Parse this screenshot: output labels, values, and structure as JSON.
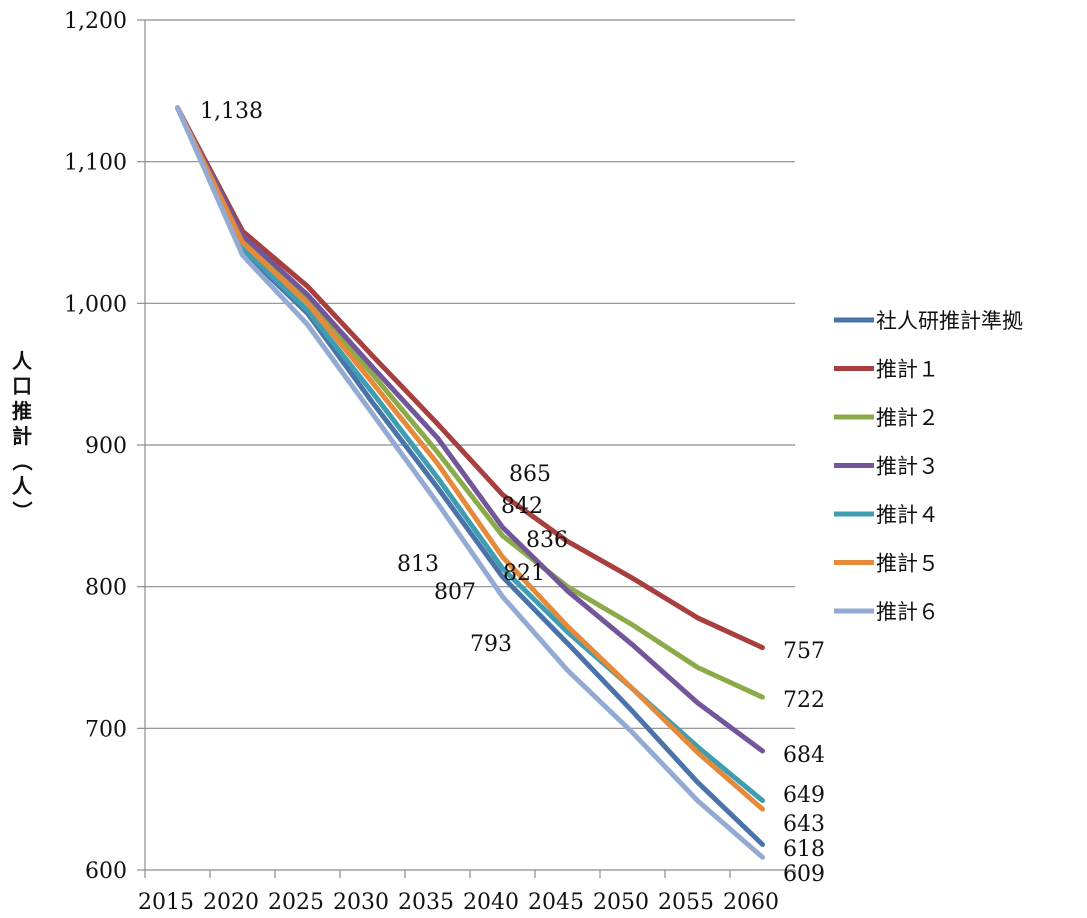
{
  "chart_data": {
    "type": "line",
    "title": "",
    "xlabel": "",
    "ylabel": "人口推計（人）",
    "categories": [
      "2015",
      "2020",
      "2025",
      "2030",
      "2035",
      "2040",
      "2045",
      "2050",
      "2055",
      "2060"
    ],
    "ylim": [
      600,
      1200
    ],
    "yticks": [
      600,
      700,
      800,
      900,
      1000,
      1100,
      1200
    ],
    "ytick_labels": [
      "600",
      "700",
      "800",
      "900",
      "1,000",
      "1,100",
      "1,200"
    ],
    "grid": true,
    "legend_position": "right",
    "series": [
      {
        "name": "社人研推計準拠",
        "color": "#4a73aa",
        "values": [
          1138,
          1037,
          993,
          930,
          870,
          807,
          760,
          712,
          662,
          618
        ]
      },
      {
        "name": "推計１",
        "color": "#a63f3d",
        "values": [
          1138,
          1051,
          1012,
          963,
          915,
          865,
          832,
          806,
          778,
          757
        ]
      },
      {
        "name": "推計２",
        "color": "#8bab4a",
        "values": [
          1138,
          1045,
          1003,
          950,
          895,
          836,
          800,
          773,
          743,
          722
        ]
      },
      {
        "name": "推計３",
        "color": "#73559a",
        "values": [
          1138,
          1048,
          1006,
          955,
          905,
          842,
          797,
          759,
          718,
          684
        ]
      },
      {
        "name": "推計４",
        "color": "#3e9db0",
        "values": [
          1138,
          1039,
          995,
          937,
          877,
          813,
          768,
          728,
          687,
          649
        ]
      },
      {
        "name": "推計５",
        "color": "#e58a3a",
        "values": [
          1138,
          1043,
          1000,
          944,
          887,
          821,
          772,
          728,
          683,
          643
        ]
      },
      {
        "name": "推計６",
        "color": "#93aad3",
        "values": [
          1138,
          1034,
          985,
          922,
          859,
          793,
          741,
          697,
          649,
          609
        ]
      }
    ],
    "data_labels": [
      {
        "text": "1,138"
      },
      {
        "text": "865"
      },
      {
        "text": "842"
      },
      {
        "text": "836"
      },
      {
        "text": "821"
      },
      {
        "text": "813"
      },
      {
        "text": "807"
      },
      {
        "text": "793"
      },
      {
        "text": "757"
      },
      {
        "text": "722"
      },
      {
        "text": "684"
      },
      {
        "text": "649"
      },
      {
        "text": "643"
      },
      {
        "text": "618"
      },
      {
        "text": "609"
      }
    ]
  }
}
